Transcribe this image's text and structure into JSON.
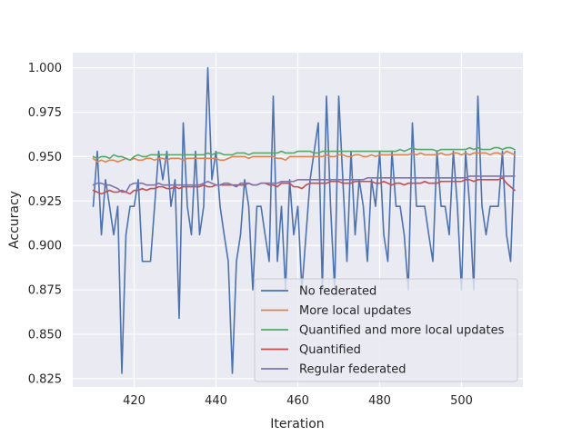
{
  "chart_data": {
    "type": "line",
    "title": "",
    "xlabel": "Iteration",
    "ylabel": "Accuracy",
    "xlim": [
      405,
      515
    ],
    "ylim": [
      0.8203,
      1.0085
    ],
    "xticks": [
      420,
      440,
      460,
      480,
      500
    ],
    "yticks": [
      0.825,
      0.85,
      0.875,
      0.9,
      0.925,
      0.95,
      0.975,
      1.0
    ],
    "ytick_labels": [
      "0.825",
      "0.850",
      "0.875",
      "0.900",
      "0.925",
      "0.950",
      "0.975",
      "1.000"
    ],
    "grid": true,
    "legend_position": "lower-right",
    "x_start": 410,
    "series": [
      {
        "name": "No federated",
        "color": "#4c72b0",
        "values": [
          0.922,
          0.953,
          0.906,
          0.937,
          0.922,
          0.906,
          0.922,
          0.828,
          0.906,
          0.922,
          0.922,
          0.937,
          0.891,
          0.891,
          0.891,
          0.922,
          0.953,
          0.937,
          0.953,
          0.922,
          0.937,
          0.859,
          0.969,
          0.922,
          0.906,
          0.953,
          0.906,
          0.922,
          1.0,
          0.937,
          0.953,
          0.922,
          0.906,
          0.891,
          0.828,
          0.891,
          0.906,
          0.937,
          0.922,
          0.875,
          0.922,
          0.922,
          0.906,
          0.891,
          0.984,
          0.891,
          0.922,
          0.875,
          0.937,
          0.906,
          0.922,
          0.875,
          0.906,
          0.937,
          0.953,
          0.969,
          0.875,
          0.984,
          0.922,
          0.875,
          0.984,
          0.937,
          0.891,
          0.953,
          0.906,
          0.937,
          0.922,
          0.891,
          0.937,
          0.922,
          0.953,
          0.906,
          0.891,
          0.953,
          0.922,
          0.922,
          0.906,
          0.875,
          0.969,
          0.922,
          0.922,
          0.922,
          0.906,
          0.891,
          0.953,
          0.922,
          0.922,
          0.906,
          0.953,
          0.922,
          0.875,
          0.953,
          0.922,
          0.875,
          0.984,
          0.922,
          0.906,
          0.922,
          0.922,
          0.922,
          0.953,
          0.906,
          0.891,
          0.953
        ]
      },
      {
        "name": "More local updates",
        "color": "#dd8452",
        "values": [
          0.949,
          0.947,
          0.948,
          0.947,
          0.948,
          0.948,
          0.947,
          0.948,
          0.949,
          0.948,
          0.949,
          0.948,
          0.948,
          0.949,
          0.949,
          0.948,
          0.949,
          0.949,
          0.948,
          0.949,
          0.949,
          0.949,
          0.948,
          0.949,
          0.949,
          0.949,
          0.949,
          0.949,
          0.949,
          0.949,
          0.949,
          0.948,
          0.948,
          0.949,
          0.95,
          0.95,
          0.95,
          0.95,
          0.949,
          0.95,
          0.95,
          0.95,
          0.95,
          0.95,
          0.95,
          0.949,
          0.949,
          0.948,
          0.95,
          0.95,
          0.95,
          0.95,
          0.95,
          0.95,
          0.95,
          0.95,
          0.95,
          0.951,
          0.95,
          0.95,
          0.951,
          0.951,
          0.95,
          0.95,
          0.951,
          0.951,
          0.95,
          0.95,
          0.951,
          0.95,
          0.951,
          0.951,
          0.951,
          0.951,
          0.951,
          0.951,
          0.951,
          0.951,
          0.952,
          0.951,
          0.952,
          0.951,
          0.951,
          0.951,
          0.951,
          0.952,
          0.951,
          0.951,
          0.952,
          0.952,
          0.951,
          0.952,
          0.951,
          0.952,
          0.952,
          0.952,
          0.952,
          0.951,
          0.952,
          0.952,
          0.951,
          0.953,
          0.952,
          0.951
        ]
      },
      {
        "name": "Quantified and more local updates",
        "color": "#55a868",
        "values": [
          0.95,
          0.949,
          0.95,
          0.95,
          0.949,
          0.951,
          0.95,
          0.95,
          0.949,
          0.948,
          0.95,
          0.951,
          0.95,
          0.95,
          0.951,
          0.951,
          0.951,
          0.951,
          0.951,
          0.951,
          0.951,
          0.951,
          0.951,
          0.951,
          0.951,
          0.951,
          0.951,
          0.951,
          0.952,
          0.951,
          0.952,
          0.952,
          0.951,
          0.951,
          0.951,
          0.952,
          0.952,
          0.952,
          0.951,
          0.952,
          0.952,
          0.952,
          0.952,
          0.952,
          0.952,
          0.952,
          0.953,
          0.952,
          0.952,
          0.952,
          0.953,
          0.953,
          0.953,
          0.953,
          0.952,
          0.952,
          0.953,
          0.953,
          0.953,
          0.953,
          0.953,
          0.953,
          0.953,
          0.953,
          0.953,
          0.953,
          0.953,
          0.953,
          0.953,
          0.953,
          0.953,
          0.953,
          0.953,
          0.953,
          0.953,
          0.954,
          0.953,
          0.954,
          0.955,
          0.954,
          0.954,
          0.954,
          0.954,
          0.954,
          0.953,
          0.954,
          0.954,
          0.954,
          0.954,
          0.954,
          0.954,
          0.954,
          0.955,
          0.954,
          0.955,
          0.954,
          0.954,
          0.954,
          0.955,
          0.955,
          0.954,
          0.955,
          0.955,
          0.954
        ]
      },
      {
        "name": "Quantified",
        "color": "#c44e52",
        "values": [
          0.931,
          0.93,
          0.929,
          0.93,
          0.931,
          0.93,
          0.93,
          0.931,
          0.93,
          0.929,
          0.931,
          0.931,
          0.932,
          0.931,
          0.932,
          0.932,
          0.933,
          0.933,
          0.932,
          0.932,
          0.933,
          0.932,
          0.933,
          0.933,
          0.933,
          0.933,
          0.933,
          0.934,
          0.933,
          0.933,
          0.934,
          0.934,
          0.934,
          0.934,
          0.934,
          0.934,
          0.934,
          0.934,
          0.935,
          0.934,
          0.934,
          0.935,
          0.935,
          0.934,
          0.934,
          0.933,
          0.935,
          0.935,
          0.935,
          0.933,
          0.933,
          0.932,
          0.934,
          0.935,
          0.935,
          0.935,
          0.935,
          0.935,
          0.936,
          0.936,
          0.936,
          0.935,
          0.935,
          0.935,
          0.936,
          0.936,
          0.936,
          0.936,
          0.936,
          0.935,
          0.935,
          0.936,
          0.935,
          0.934,
          0.935,
          0.935,
          0.934,
          0.935,
          0.935,
          0.935,
          0.935,
          0.936,
          0.935,
          0.935,
          0.935,
          0.936,
          0.936,
          0.936,
          0.936,
          0.936,
          0.936,
          0.937,
          0.937,
          0.936,
          0.937,
          0.937,
          0.937,
          0.937,
          0.937,
          0.937,
          0.938,
          0.935,
          0.933,
          0.931
        ]
      },
      {
        "name": "Regular federated",
        "color": "#8172b3",
        "values": [
          0.934,
          0.935,
          0.935,
          0.934,
          0.934,
          0.933,
          0.932,
          0.93,
          0.93,
          0.934,
          0.935,
          0.935,
          0.935,
          0.934,
          0.934,
          0.934,
          0.935,
          0.934,
          0.934,
          0.934,
          0.934,
          0.934,
          0.934,
          0.934,
          0.934,
          0.934,
          0.934,
          0.935,
          0.936,
          0.935,
          0.934,
          0.934,
          0.935,
          0.935,
          0.934,
          0.933,
          0.935,
          0.935,
          0.935,
          0.934,
          0.934,
          0.935,
          0.935,
          0.935,
          0.935,
          0.935,
          0.936,
          0.936,
          0.936,
          0.936,
          0.937,
          0.937,
          0.937,
          0.937,
          0.937,
          0.937,
          0.937,
          0.937,
          0.937,
          0.937,
          0.937,
          0.937,
          0.937,
          0.937,
          0.937,
          0.937,
          0.937,
          0.938,
          0.938,
          0.938,
          0.938,
          0.938,
          0.938,
          0.938,
          0.938,
          0.938,
          0.938,
          0.938,
          0.938,
          0.938,
          0.938,
          0.938,
          0.938,
          0.938,
          0.938,
          0.938,
          0.938,
          0.938,
          0.938,
          0.938,
          0.938,
          0.938,
          0.939,
          0.939,
          0.939,
          0.939,
          0.939,
          0.939,
          0.939,
          0.939,
          0.939,
          0.939,
          0.939,
          0.939
        ]
      }
    ]
  }
}
